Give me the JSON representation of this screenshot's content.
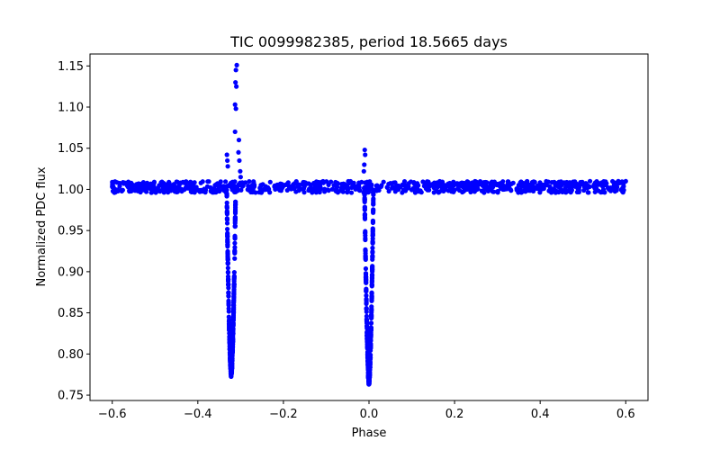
{
  "chart_data": {
    "type": "scatter",
    "title": "TIC 0099982385, period 18.5665 days",
    "xlabel": "Phase",
    "ylabel": "Normalized PDC flux",
    "xlim": [
      -0.652,
      0.652
    ],
    "ylim": [
      0.7435,
      1.1645
    ],
    "xticks": [
      -0.6,
      -0.4,
      -0.2,
      0.0,
      0.2,
      0.4,
      0.6
    ],
    "xtick_labels": [
      "−0.6",
      "−0.4",
      "−0.2",
      "0.0",
      "0.2",
      "0.4",
      "0.6"
    ],
    "yticks": [
      0.75,
      0.8,
      0.85,
      0.9,
      0.95,
      1.0,
      1.05,
      1.1,
      1.15
    ],
    "ytick_labels": [
      "0.75",
      "0.80",
      "0.85",
      "0.90",
      "0.95",
      "1.00",
      "1.05",
      "1.10",
      "1.15"
    ],
    "marker_color": "#0000ff",
    "series": [
      {
        "name": "PDC flux",
        "baseline": 1.003,
        "x_range": [
          -0.6,
          0.6
        ],
        "primary_eclipse": {
          "phase": 0.0,
          "min_flux": 0.767
        },
        "secondary_eclipse": {
          "phase": -0.322,
          "min_flux": 0.777
        },
        "spikes": [
          {
            "x": -0.309,
            "y": 1.151
          },
          {
            "x": -0.311,
            "y": 1.145
          },
          {
            "x": -0.312,
            "y": 1.13
          },
          {
            "x": -0.31,
            "y": 1.125
          },
          {
            "x": -0.313,
            "y": 1.103
          },
          {
            "x": -0.311,
            "y": 1.098
          },
          {
            "x": -0.313,
            "y": 1.07
          },
          {
            "x": -0.304,
            "y": 1.06
          },
          {
            "x": -0.305,
            "y": 1.045
          },
          {
            "x": -0.303,
            "y": 1.035
          },
          {
            "x": -0.301,
            "y": 1.022
          },
          {
            "x": -0.3,
            "y": 1.015
          },
          {
            "x": -0.332,
            "y": 1.042
          },
          {
            "x": -0.331,
            "y": 1.035
          },
          {
            "x": -0.33,
            "y": 1.028
          },
          {
            "x": -0.01,
            "y": 1.048
          },
          {
            "x": -0.009,
            "y": 1.042
          },
          {
            "x": -0.011,
            "y": 1.03
          },
          {
            "x": -0.012,
            "y": 1.022
          }
        ]
      }
    ]
  }
}
